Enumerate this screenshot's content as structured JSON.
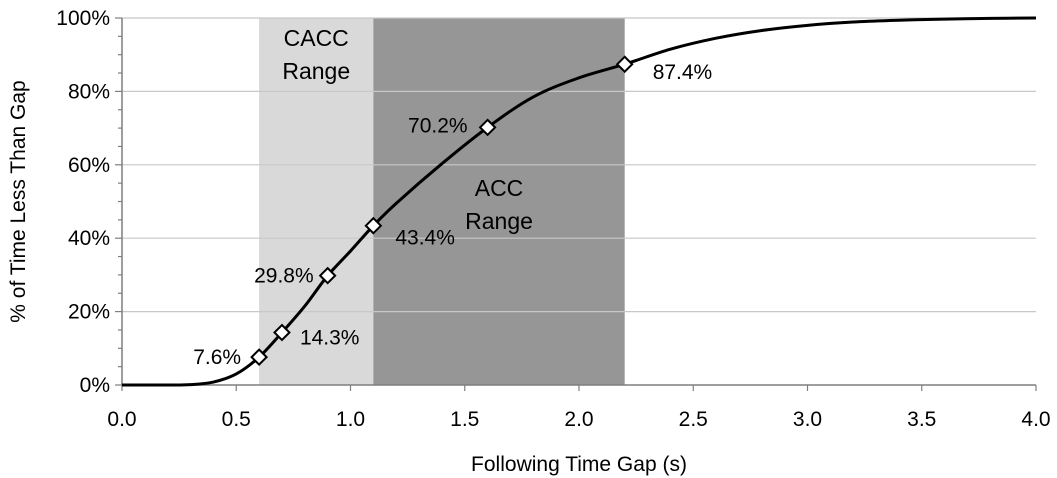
{
  "chart_data": {
    "type": "line",
    "title": "",
    "xlabel": "Following Time Gap (s)",
    "ylabel": "% of Time Less Than Gap",
    "xlim": [
      0,
      4
    ],
    "ylim": [
      0,
      100
    ],
    "x_ticks": [
      "0.0",
      "0.5",
      "1.0",
      "1.5",
      "2.0",
      "2.5",
      "3.0",
      "3.5",
      "4.0"
    ],
    "y_ticks": [
      "0%",
      "20%",
      "40%",
      "60%",
      "80%",
      "100%"
    ],
    "grid": "horizontal",
    "line_color": "#000000",
    "curve": {
      "x": [
        0,
        0.2,
        0.3,
        0.4,
        0.5,
        0.6,
        0.7,
        0.8,
        0.9,
        1.0,
        1.1,
        1.2,
        1.4,
        1.6,
        1.8,
        2.0,
        2.2,
        2.4,
        2.6,
        2.8,
        3.0,
        3.2,
        3.4,
        3.6,
        3.8,
        4.0
      ],
      "y": [
        0,
        0,
        0.1,
        0.8,
        3.0,
        7.6,
        14.3,
        21.5,
        29.8,
        36.5,
        43.4,
        49.5,
        60.3,
        70.2,
        78.5,
        83.7,
        87.4,
        91.5,
        94.5,
        96.6,
        98.0,
        98.9,
        99.4,
        99.7,
        99.9,
        100.0
      ]
    },
    "markers": [
      {
        "x": 0.6,
        "y": 7.6,
        "label": "7.6%"
      },
      {
        "x": 0.7,
        "y": 14.3,
        "label": "14.3%"
      },
      {
        "x": 0.9,
        "y": 29.8,
        "label": "29.8%"
      },
      {
        "x": 1.1,
        "y": 43.4,
        "label": "43.4%"
      },
      {
        "x": 1.6,
        "y": 70.2,
        "label": "70.2%"
      },
      {
        "x": 2.2,
        "y": 87.4,
        "label": "87.4%"
      }
    ],
    "ranges": [
      {
        "name": "cacc-range",
        "label_lines": [
          "CACC",
          "Range"
        ],
        "x_start": 0.6,
        "x_end": 1.1,
        "color": "#d9d9d9"
      },
      {
        "name": "acc-range",
        "label_lines": [
          "ACC",
          "Range"
        ],
        "x_start": 1.1,
        "x_end": 2.2,
        "color": "#969696"
      }
    ]
  }
}
